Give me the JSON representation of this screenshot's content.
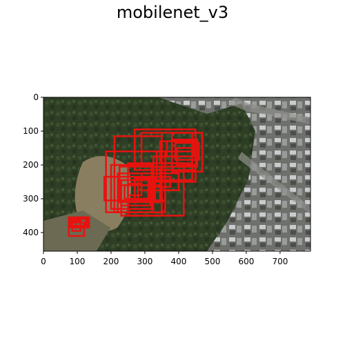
{
  "chart_data": {
    "type": "image",
    "title": "mobilenet_v3",
    "xlabel": "",
    "ylabel": "",
    "image_extent": {
      "x": [
        0,
        790
      ],
      "y": [
        0,
        455
      ]
    },
    "xlim": [
      0,
      790
    ],
    "ylim": [
      455,
      0
    ],
    "x_ticks": [
      0,
      100,
      200,
      300,
      400,
      500,
      600,
      700
    ],
    "y_ticks": [
      0,
      100,
      200,
      300,
      400
    ],
    "grid": false,
    "legend": "none",
    "box_color": "#e8120f",
    "background_image": "aerial-satellite-view-park-urban-blocks",
    "boxes": [
      [
        270,
        95,
        450,
        215
      ],
      [
        290,
        105,
        440,
        205
      ],
      [
        380,
        105,
        470,
        220
      ],
      [
        380,
        125,
        455,
        205
      ],
      [
        390,
        135,
        460,
        185
      ],
      [
        395,
        150,
        450,
        200
      ],
      [
        365,
        130,
        445,
        175
      ],
      [
        345,
        130,
        440,
        195
      ],
      [
        335,
        160,
        440,
        245
      ],
      [
        325,
        175,
        450,
        250
      ],
      [
        210,
        115,
        350,
        340
      ],
      [
        185,
        160,
        360,
        340
      ],
      [
        200,
        200,
        320,
        330
      ],
      [
        225,
        205,
        345,
        310
      ],
      [
        220,
        225,
        325,
        340
      ],
      [
        230,
        245,
        315,
        320
      ],
      [
        240,
        260,
        310,
        300
      ],
      [
        250,
        255,
        290,
        290
      ],
      [
        270,
        240,
        330,
        300
      ],
      [
        280,
        235,
        360,
        305
      ],
      [
        290,
        225,
        400,
        275
      ],
      [
        180,
        235,
        315,
        305
      ],
      [
        230,
        260,
        350,
        350
      ],
      [
        250,
        195,
        415,
        350
      ],
      [
        310,
        235,
        375,
        265
      ],
      [
        75,
        355,
        135,
        385
      ],
      [
        80,
        360,
        125,
        380
      ],
      [
        85,
        365,
        110,
        395
      ],
      [
        75,
        370,
        120,
        410
      ],
      [
        95,
        355,
        130,
        380
      ]
    ]
  }
}
